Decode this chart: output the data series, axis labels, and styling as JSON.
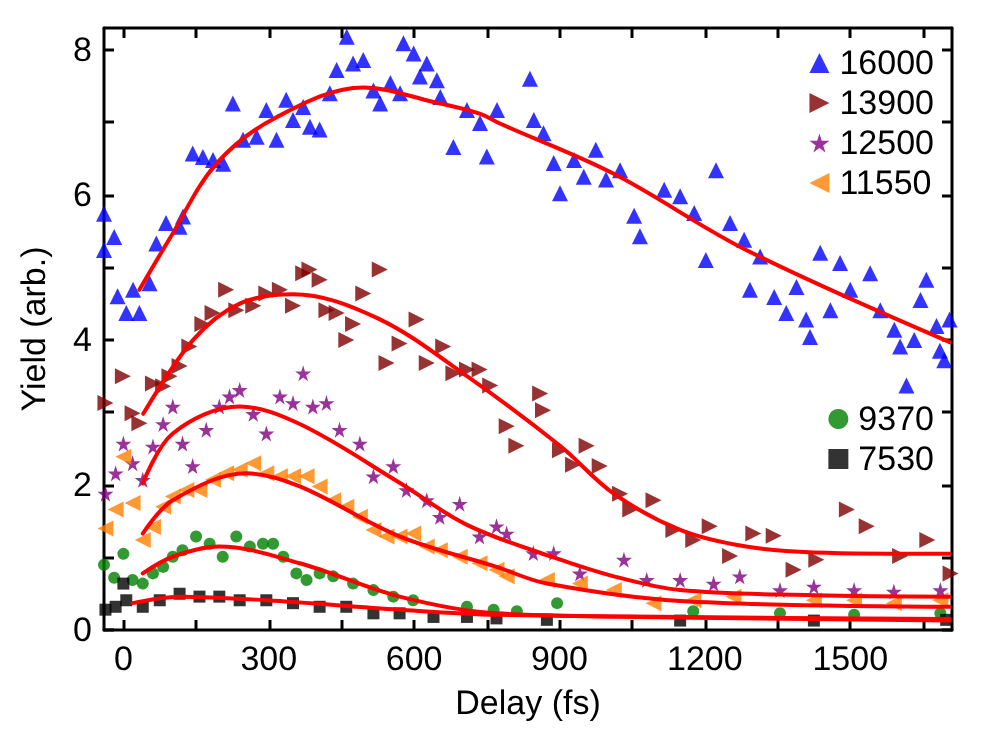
{
  "chart_data": {
    "type": "scatter",
    "xlabel": "Delay (fs)",
    "ylabel": "Yield (arb.)",
    "xlim": [
      -40,
      1710
    ],
    "ylim": [
      0,
      8.3
    ],
    "xticks": [
      0,
      {
        "value": 150,
        "label": null
      },
      300,
      {
        "value": 450,
        "label": null
      },
      600,
      {
        "value": 750,
        "label": null
      },
      900,
      {
        "value": 1050,
        "label": null
      },
      1200,
      {
        "value": 1350,
        "label": null
      },
      1500,
      {
        "value": 1650,
        "label": null
      }
    ],
    "yticks": [
      0,
      {
        "value": 1,
        "label": null
      },
      2,
      {
        "value": 3,
        "label": null
      },
      4,
      {
        "value": 5,
        "label": null
      },
      6,
      {
        "value": 7,
        "label": null
      },
      8
    ],
    "grid": false,
    "legend": "top right",
    "series": [
      {
        "name": "16000",
        "color": "#0000ff",
        "marker": "triangle",
        "x": [
          -40,
          -40,
          -19,
          -12,
          6,
          20,
          33,
          54,
          68,
          88,
          116,
          123,
          143,
          164,
          185,
          206,
          226,
          247,
          275,
          295,
          316,
          336,
          350,
          371,
          385,
          405,
          426,
          440,
          461,
          474,
          495,
          516,
          530,
          551,
          571,
          578,
          599,
          612,
          626,
          647,
          654,
          681,
          709,
          736,
          750,
          771,
          839,
          847,
          867,
          888,
          901,
          930,
          950,
          975,
          996,
          1025,
          1054,
          1066,
          1116,
          1149,
          1178,
          1202,
          1223,
          1252,
          1281,
          1293,
          1314,
          1343,
          1368,
          1389,
          1409,
          1417,
          1438,
          1459,
          1479,
          1500,
          1541,
          1562,
          1591,
          1603,
          1616,
          1632,
          1645,
          1657,
          1678,
          1685,
          1694,
          1705
        ],
        "values": [
          5.74,
          5.24,
          5.42,
          4.6,
          4.37,
          4.69,
          4.37,
          4.78,
          5.33,
          5.61,
          5.56,
          5.7,
          6.57,
          6.52,
          6.48,
          6.43,
          7.26,
          6.76,
          6.8,
          7.17,
          6.76,
          7.31,
          7.03,
          7.21,
          6.94,
          6.9,
          7.4,
          7.72,
          8.18,
          7.81,
          7.86,
          7.44,
          7.26,
          7.54,
          7.4,
          8.09,
          7.95,
          7.63,
          7.81,
          7.58,
          7.35,
          6.66,
          7.17,
          6.99,
          6.53,
          7.17,
          7.6,
          7.03,
          6.85,
          6.44,
          6.02,
          6.48,
          6.25,
          6.62,
          6.21,
          6.34,
          5.71,
          5.43,
          6.07,
          5.98,
          5.75,
          5.1,
          6.34,
          5.61,
          5.38,
          4.69,
          5.15,
          4.59,
          4.37,
          4.73,
          4.28,
          4.04,
          5.2,
          4.41,
          5.06,
          4.69,
          4.92,
          4.41,
          4.14,
          3.91,
          3.37,
          4.0,
          4.55,
          4.83,
          4.19,
          3.85,
          3.72,
          4.28
        ]
      },
      {
        "name": "13900",
        "color": "#800000",
        "marker": "triangle-right",
        "x": [
          -37,
          -1,
          19,
          33,
          61,
          82,
          95,
          116,
          136,
          163,
          184,
          212,
          233,
          268,
          295,
          323,
          350,
          371,
          384,
          405,
          419,
          440,
          460,
          474,
          495,
          529,
          543,
          570,
          605,
          626,
          660,
          681,
          709,
          735,
          757,
          791,
          811,
          860,
          866,
          901,
          928,
          956,
          983,
          1025,
          1046,
          1094,
          1135,
          1176,
          1210,
          1252,
          1300,
          1342,
          1383,
          1430,
          1493,
          1534,
          1575,
          1603,
          1659,
          1707
        ],
        "values": [
          3.13,
          3.5,
          2.99,
          2.85,
          3.4,
          3.36,
          3.5,
          3.64,
          3.91,
          4.22,
          4.37,
          4.69,
          4.41,
          4.47,
          4.64,
          4.69,
          4.47,
          4.92,
          4.97,
          4.83,
          4.41,
          4.37,
          4.0,
          4.22,
          4.64,
          4.97,
          3.68,
          3.95,
          4.28,
          3.68,
          3.91,
          3.54,
          3.59,
          3.59,
          3.37,
          2.81,
          2.54,
          3.26,
          3.03,
          2.48,
          2.28,
          2.54,
          2.26,
          1.88,
          1.66,
          1.79,
          1.38,
          1.24,
          1.43,
          1.02,
          1.33,
          1.3,
          0.83,
          0.97,
          1.66,
          1.43,
          null,
          1.02,
          1.24,
          0.78
        ]
      },
      {
        "name": "12500",
        "color": "#800080",
        "marker": "star",
        "x": [
          -37,
          -16,
          0,
          19,
          40,
          61,
          82,
          102,
          122,
          143,
          171,
          198,
          219,
          240,
          268,
          295,
          323,
          350,
          371,
          391,
          419,
          446,
          488,
          516,
          557,
          584,
          626,
          653,
          694,
          735,
          770,
          791,
          846,
          888,
          942,
          1033,
          1080,
          1149,
          1218,
          1272,
          1355,
          1425,
          1508,
          1590,
          1686
        ],
        "values": [
          1.88,
          2.16,
          2.57,
          2.3,
          2.07,
          2.53,
          2.84,
          3.08,
          2.57,
          2.26,
          2.76,
          3.08,
          3.22,
          3.31,
          2.98,
          2.71,
          3.22,
          3.13,
          3.54,
          3.08,
          3.13,
          2.76,
          2.57,
          2.12,
          2.26,
          1.93,
          1.79,
          1.56,
          1.74,
          1.29,
          1.43,
          1.33,
          1.06,
          1.06,
          0.78,
          0.97,
          0.69,
          0.69,
          0.64,
          0.74,
          0.55,
          0.6,
          0.55,
          0.53,
          0.55
        ]
      },
      {
        "name": "11550",
        "color": "#ff8000",
        "marker": "triangle-left",
        "x": [
          -37,
          -16,
          0,
          19,
          40,
          61,
          82,
          102,
          130,
          157,
          185,
          212,
          240,
          268,
          295,
          323,
          350,
          378,
          405,
          433,
          460,
          488,
          516,
          543,
          570,
          598,
          626,
          653,
          694,
          735,
          770,
          791,
          874,
          942,
          1012,
          1094,
          1176,
          1259,
          1342,
          1425,
          1508,
          1590,
          1686
        ],
        "values": [
          1.4,
          1.66,
          2.39,
          1.75,
          1.24,
          1.42,
          1.7,
          1.84,
          1.93,
          1.93,
          2.07,
          2.16,
          2.21,
          2.3,
          2.16,
          2.12,
          2.12,
          2.12,
          1.98,
          1.79,
          1.7,
          1.56,
          1.38,
          1.29,
          1.29,
          1.33,
          1.15,
          1.1,
          1.01,
          0.92,
          0.83,
          0.74,
          0.69,
          0.64,
          0.55,
          0.37,
          0.41,
          0.46,
          null,
          0.41,
          0.41,
          0.37,
          0.41
        ]
      },
      {
        "name": "9370",
        "color": "#008000",
        "marker": "circle",
        "x": [
          -40,
          -19,
          0,
          19,
          40,
          61,
          82,
          102,
          122,
          150,
          178,
          205,
          233,
          261,
          288,
          309,
          330,
          357,
          378,
          405,
          433,
          474,
          516,
          557,
          598,
          653,
          709,
          764,
          812,
          895,
          1012,
          1176,
          1355,
          1508,
          1686
        ],
        "values": [
          0.9,
          0.72,
          1.05,
          0.69,
          0.64,
          0.78,
          0.87,
          1.01,
          1.1,
          1.29,
          1.19,
          1.01,
          1.29,
          1.15,
          1.19,
          1.19,
          1.01,
          0.78,
          0.69,
          0.78,
          0.74,
          0.64,
          0.55,
          0.46,
          0.41,
          null,
          0.32,
          0.28,
          0.26,
          0.37,
          null,
          0.26,
          0.23,
          0.21,
          0.23
        ]
      },
      {
        "name": "7530",
        "color": "#000000",
        "marker": "square",
        "x": [
          -37,
          -16,
          0,
          6,
          40,
          75,
          116,
          157,
          198,
          240,
          295,
          350,
          405,
          460,
          516,
          570,
          640,
          709,
          770,
          874,
          1149,
          1425,
          1698
        ],
        "values": [
          0.28,
          0.32,
          0.64,
          0.41,
          0.32,
          0.41,
          0.5,
          0.46,
          0.46,
          0.41,
          0.41,
          0.37,
          0.32,
          0.32,
          0.23,
          0.23,
          0.18,
          0.18,
          0.16,
          0.14,
          0.13,
          0.13,
          0.14
        ]
      },
      {
        "type": "line",
        "color": "#ff0000",
        "marker": "none",
        "x": [
          33,
          95,
          192,
          316,
          495,
          640,
          735,
          778,
          1012,
          1285,
          1705
        ],
        "values": [
          4.69,
          5.39,
          6.43,
          7.07,
          7.48,
          7.28,
          7.12,
          6.98,
          6.29,
          5.24,
          3.97
        ]
      },
      {
        "type": "line",
        "color": "#ff0000",
        "marker": "none",
        "x": [
          41,
          144,
          240,
          350,
          524,
          709,
          901,
          1012,
          1149,
          1285,
          1425,
          1705
        ],
        "values": [
          2.98,
          4.0,
          4.5,
          4.63,
          4.3,
          3.5,
          2.54,
          1.88,
          1.38,
          1.15,
          1.07,
          1.05
        ]
      },
      {
        "type": "line",
        "color": "#ff0000",
        "marker": "none",
        "x": [
          40,
          102,
          240,
          364,
          570,
          709,
          888,
          1012,
          1149,
          1425,
          1705
        ],
        "values": [
          2.02,
          2.71,
          3.08,
          2.84,
          2.03,
          1.45,
          1.0,
          0.74,
          0.55,
          0.48,
          0.46
        ]
      },
      {
        "type": "line",
        "color": "#ff0000",
        "marker": "none",
        "x": [
          40,
          102,
          254,
          364,
          570,
          770,
          874,
          1149,
          1705
        ],
        "values": [
          1.33,
          1.79,
          2.16,
          1.98,
          1.29,
          0.87,
          0.64,
          0.4,
          0.32
        ]
      },
      {
        "type": "line",
        "color": "#ff0000",
        "marker": "none",
        "x": [
          40,
          102,
          198,
          364,
          570,
          770,
          1149,
          1705
        ],
        "values": [
          0.78,
          1.01,
          1.15,
          0.92,
          0.46,
          0.23,
          0.18,
          0.15
        ]
      },
      {
        "type": "line",
        "color": "#ff0000",
        "marker": "none",
        "x": [
          19,
          116,
          295,
          570,
          770,
          1705
        ],
        "values": [
          0.37,
          0.46,
          0.41,
          0.28,
          0.21,
          0.13
        ]
      }
    ]
  }
}
